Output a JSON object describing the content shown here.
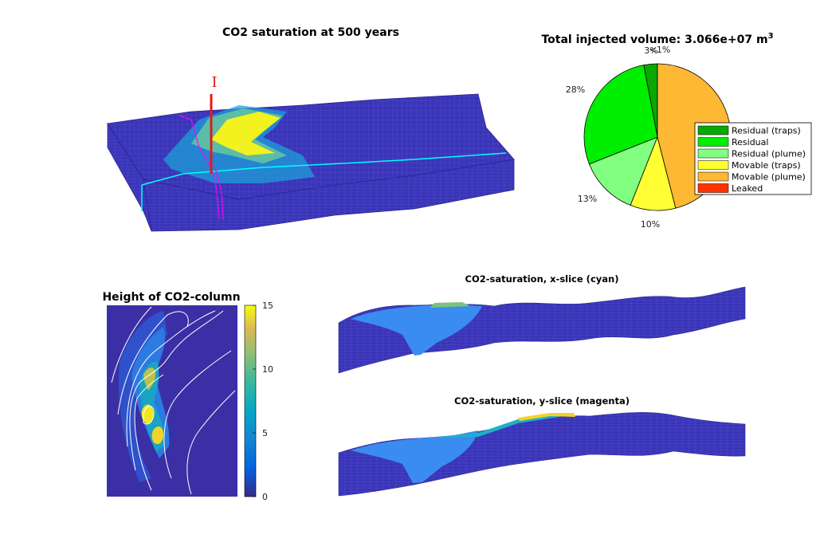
{
  "panels": {
    "saturation_3d": {
      "title": "CO2 saturation at 500 years",
      "well_label": "I"
    },
    "pie": {
      "title": "Total injected volume: 3.066e+07 m",
      "title_sup": "3"
    },
    "height_map": {
      "title": "Height of CO2-column"
    },
    "x_slice": {
      "title": "CO2-saturation, x-slice (cyan)"
    },
    "y_slice": {
      "title": "CO2-saturation, y-slice (magenta)"
    }
  },
  "colors": {
    "reservoir": "#3a35b8",
    "grid_line": "#6a66d8",
    "cyan_slice": "#00ffff",
    "magenta_slice": "#ff00ff",
    "well": "#e31a1c"
  },
  "chart_data": [
    {
      "type": "pie",
      "title": "Total injected volume: 3.066e+07 m3",
      "categories": [
        "Residual (traps)",
        "Residual",
        "Residual (plume)",
        "Movable (traps)",
        "Movable (plume)",
        "Leaked"
      ],
      "values": [
        3,
        28,
        13,
        10,
        46,
        0
      ],
      "labels": [
        "3%",
        "28%",
        "13%",
        "10%",
        "46%",
        "<1%"
      ],
      "visible_labels": [
        "3%",
        "<1%",
        "28%",
        "13%",
        "10%"
      ],
      "colors": [
        "#08a800",
        "#00ee00",
        "#80ff80",
        "#ffff33",
        "#ffb833",
        "#ff3300"
      ],
      "legend": "right"
    },
    {
      "type": "heatmap",
      "title": "Height of CO2-column",
      "colorbar": {
        "ticks": [
          "0",
          "5",
          "10",
          "15"
        ],
        "range": [
          0,
          15
        ],
        "colormap": "parula"
      }
    }
  ]
}
